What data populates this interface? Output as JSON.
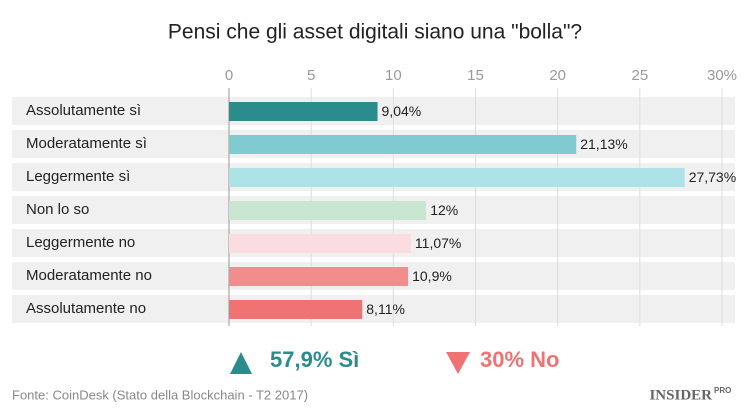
{
  "chart_data": {
    "type": "bar",
    "orientation": "horizontal",
    "title": "Pensi che gli asset digitali siano una \"bolla\"?",
    "categories": [
      "Assolutamente sì",
      "Moderatamente sì",
      "Leggermente sì",
      "Non lo so",
      "Leggermente no",
      "Moderatamente no",
      "Assolutamente no"
    ],
    "values": [
      9.04,
      21.13,
      27.73,
      12,
      11.07,
      10.9,
      8.11
    ],
    "value_labels": [
      "9,04%",
      "21,13%",
      "27,73%",
      "12%",
      "11,07%",
      "10,9%",
      "8,11%"
    ],
    "colors": [
      "#2b8c8d",
      "#80cbd1",
      "#ade2e6",
      "#c9e7d0",
      "#fbdde1",
      "#f28d8d",
      "#f07272"
    ],
    "xlim": [
      0,
      30
    ],
    "xticks": [
      0,
      5,
      10,
      15,
      20,
      25,
      {
        "value": 30,
        "label": "30%"
      }
    ],
    "grid": true,
    "annotations": [
      "57,9%  Sì",
      "30% No"
    ],
    "source": "Fonte: CoinDesk (Stato della Blockchain - T2 2017)",
    "logo": [
      "INSIDER",
      "PRO"
    ]
  }
}
